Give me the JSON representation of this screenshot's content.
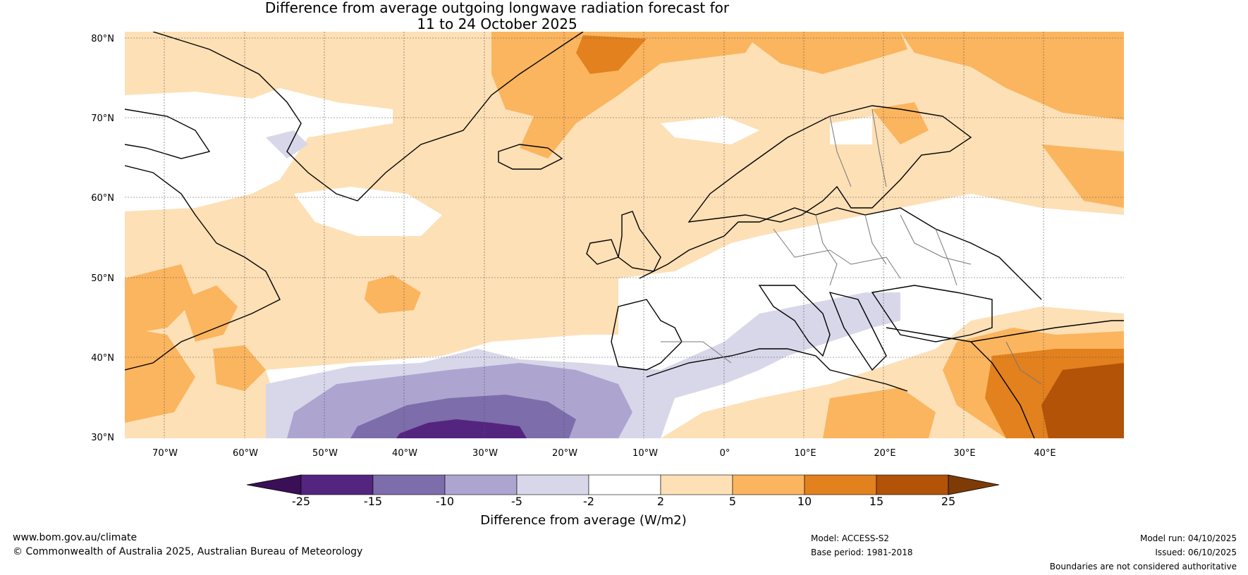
{
  "title": {
    "line1": "Difference from average outgoing longwave radiation forecast for",
    "line2": "11 to 24 October 2025"
  },
  "map": {
    "region": "North Atlantic and Europe",
    "lat_labels": [
      "80°N",
      "70°N",
      "60°N",
      "50°N",
      "40°N",
      "30°N"
    ],
    "lon_labels": [
      "70°W",
      "60°W",
      "50°W",
      "40°W",
      "30°W",
      "20°W",
      "10°W",
      "0°",
      "10°E",
      "20°E",
      "30°E",
      "40°E"
    ],
    "lat_range": [
      30,
      81
    ],
    "lon_range": [
      -75,
      50
    ]
  },
  "colorbar": {
    "ticks": [
      "-25",
      "-15",
      "-10",
      "-5",
      "-2",
      "2",
      "5",
      "10",
      "15",
      "25"
    ],
    "colors": [
      "#3b0f57",
      "#54257f",
      "#7d6dab",
      "#ada5d0",
      "#d8d7ea",
      "#ffffff",
      "#fde0b6",
      "#fbb55f",
      "#e2811d",
      "#b25307",
      "#7e3b05"
    ],
    "label": "Difference from average (W/m2)"
  },
  "footer": {
    "website": "www.bom.gov.au/climate",
    "copyright": "© Commonwealth of Australia 2025, Australian Bureau of Meteorology",
    "model": "Model: ACCESS-S2",
    "base_period": "Base period: 1981-2018",
    "model_run": "Model run: 04/10/2025",
    "issued": "Issued: 06/10/2025",
    "boundaries_note": "Boundaries are not considered authoritative"
  }
}
